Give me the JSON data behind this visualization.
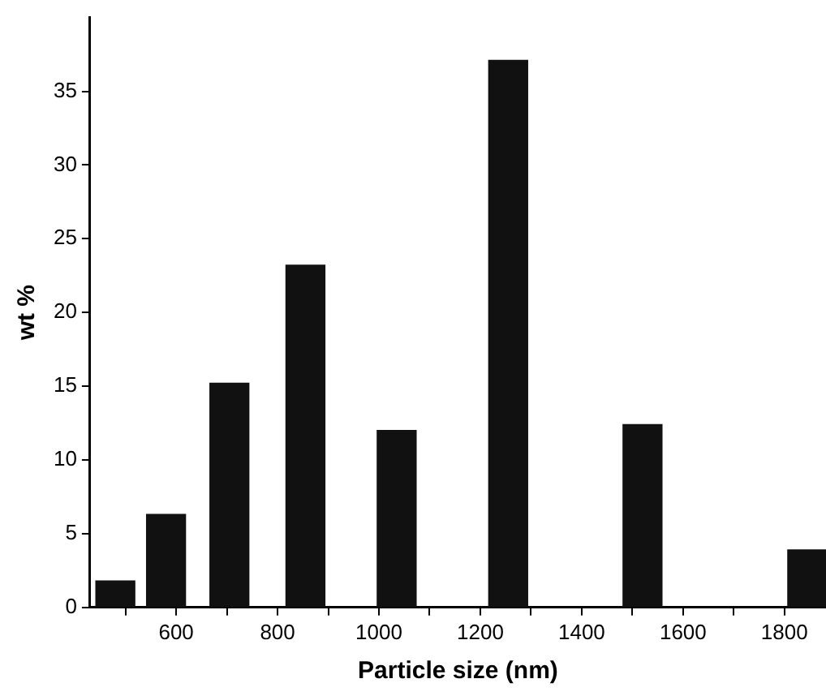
{
  "chart_data": {
    "type": "bar",
    "xlabel": "Particle size (nm)",
    "ylabel": "wt %",
    "x": [
      480,
      580,
      705,
      855,
      1035,
      1255,
      1520,
      1845
    ],
    "values": [
      1.8,
      6.3,
      15.2,
      23.2,
      12.0,
      37.1,
      12.4,
      3.9
    ],
    "color": "#111111",
    "xlim": [
      430,
      1882
    ],
    "xticks": [
      {
        "value": 500,
        "label": null
      },
      600,
      {
        "value": 700,
        "label": null
      },
      800,
      {
        "value": 900,
        "label": null
      },
      1000,
      {
        "value": 1100,
        "label": null
      },
      1200,
      {
        "value": 1300,
        "label": null
      },
      1400,
      {
        "value": 1500,
        "label": null
      },
      1600,
      {
        "value": 1700,
        "label": null
      },
      1800
    ],
    "ylim": [
      0,
      40
    ],
    "yticks": [
      0,
      5,
      10,
      15,
      20,
      25,
      30,
      35
    ],
    "grid": false,
    "legend": false
  }
}
